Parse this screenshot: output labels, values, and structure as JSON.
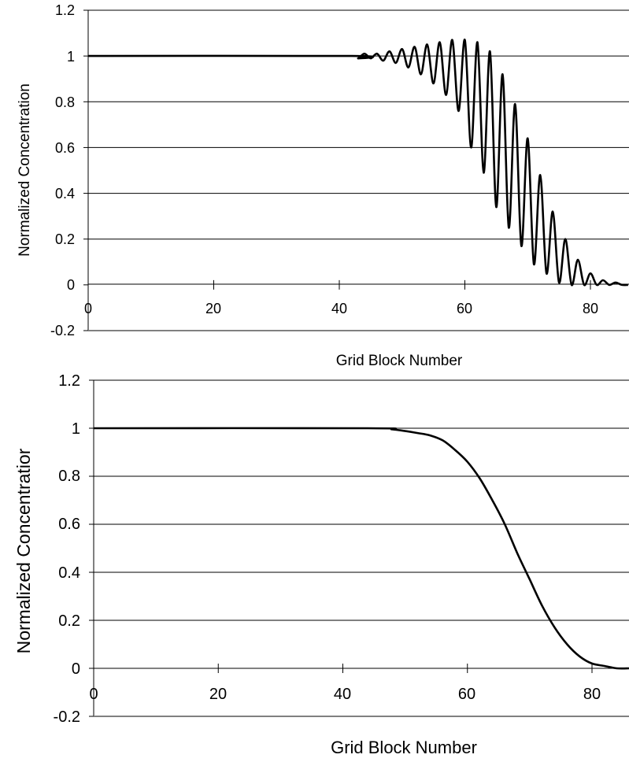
{
  "chart_data": [
    {
      "type": "line",
      "title": "",
      "xlabel": "Grid Block Number",
      "ylabel": "Normalized Concentration",
      "xlim": [
        0,
        86
      ],
      "ylim": [
        -0.2,
        1.2
      ],
      "x_ticks": [
        "0",
        "20",
        "40",
        "60",
        "80"
      ],
      "y_ticks": [
        "1.2",
        "1",
        "0.8",
        "0.6",
        "0.4",
        "0.2",
        "0",
        "-0.2"
      ],
      "grid": "horizontal",
      "series": [
        {
          "x": [
            0,
            42,
            43,
            44,
            45,
            46,
            47,
            48,
            49,
            50,
            51,
            52,
            53,
            54,
            55,
            56,
            57,
            58,
            59,
            60,
            61,
            62,
            63,
            64,
            65,
            66,
            67,
            68,
            69,
            70,
            71,
            72,
            73,
            74,
            75,
            76,
            77,
            78,
            79,
            80,
            81,
            82,
            83,
            84,
            85,
            86
          ],
          "y": [
            1.0,
            1.0,
            0.99,
            1.01,
            0.99,
            1.01,
            0.98,
            1.02,
            0.97,
            1.03,
            0.95,
            1.04,
            0.92,
            1.05,
            0.88,
            1.06,
            0.83,
            1.07,
            0.76,
            1.07,
            0.6,
            1.06,
            0.49,
            1.02,
            0.34,
            0.92,
            0.25,
            0.79,
            0.17,
            0.64,
            0.09,
            0.48,
            0.05,
            0.32,
            0.01,
            0.2,
            0.0,
            0.11,
            0.0,
            0.05,
            0.0,
            0.02,
            0.0,
            0.01,
            0.0,
            0.0
          ]
        }
      ]
    },
    {
      "type": "line",
      "title": "",
      "xlabel": "Grid Block Number",
      "ylabel": "Normalized Concentratior",
      "xlim": [
        0,
        86
      ],
      "ylim": [
        -0.2,
        1.2
      ],
      "x_ticks": [
        "0",
        "20",
        "40",
        "60",
        "80"
      ],
      "y_ticks": [
        "1.2",
        "1",
        "0.8",
        "0.6",
        "0.4",
        "0.2",
        "0",
        "-0.2"
      ],
      "grid": "horizontal",
      "series": [
        {
          "x": [
            0,
            44,
            48,
            52,
            54,
            56,
            58,
            60,
            62,
            64,
            66,
            68,
            70,
            72,
            74,
            76,
            78,
            80,
            82,
            84,
            86
          ],
          "y": [
            1.0,
            1.0,
            0.995,
            0.98,
            0.97,
            0.95,
            0.91,
            0.86,
            0.79,
            0.7,
            0.6,
            0.48,
            0.37,
            0.26,
            0.17,
            0.1,
            0.05,
            0.02,
            0.01,
            0.0,
            0.0
          ]
        }
      ]
    }
  ]
}
